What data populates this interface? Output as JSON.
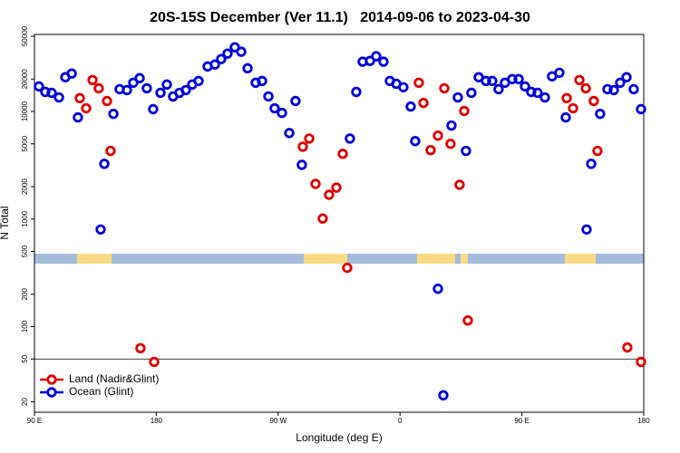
{
  "chart_data": {
    "type": "scatter",
    "title": "20S-15S December (Ver 11.1)   2014-09-06 to 2023-04-30",
    "xlabel": "Longitude (deg E)",
    "ylabel": "N Total",
    "xlim": [
      90,
      540
    ],
    "xticks": [
      {
        "value": 90,
        "label": "90 E"
      },
      {
        "value": 180,
        "label": "180"
      },
      {
        "value": 270,
        "label": "90 W"
      },
      {
        "value": 360,
        "label": "0"
      },
      {
        "value": 450,
        "label": "90 E"
      },
      {
        "value": 540,
        "label": "180"
      }
    ],
    "ylim": [
      16,
      52000
    ],
    "yscale": "log",
    "yticks": [
      20,
      50,
      100,
      200,
      500,
      1000,
      2000,
      5000,
      10000,
      20000,
      50000
    ],
    "hline": 50,
    "legend": "lower left",
    "series": [
      {
        "name": "Land (Nadir&Glint)",
        "color": "#e00000",
        "x": [
          123.5,
          128.2,
          132.9,
          137.5,
          143.6,
          146.2,
          168.3,
          178.4,
          288.2,
          292.9,
          297.6,
          302.9,
          307.6,
          313.0,
          317.7,
          321.0,
          373.9,
          377.3,
          382.6,
          388.0,
          392.7,
          397.3,
          404.0,
          407.4,
          410.1,
          483.1,
          487.8,
          492.5,
          497.2,
          503.1,
          505.8,
          527.9,
          538.0
        ],
        "values": [
          13300,
          10700,
          19600,
          16400,
          12500,
          4300,
          63,
          47,
          4700,
          5600,
          2120,
          1010,
          1680,
          1960,
          4040,
          352,
          18500,
          12000,
          4370,
          5960,
          16400,
          5000,
          2080,
          10100,
          114,
          13300,
          10700,
          19600,
          16400,
          12500,
          4300,
          64,
          47
        ]
      },
      {
        "name": "Ocean (Glint)",
        "color": "#0000dd",
        "x": [
          93.3,
          98.0,
          102.7,
          108.1,
          112.8,
          117.5,
          122.1,
          138.9,
          141.6,
          148.3,
          152.9,
          158.3,
          163.0,
          167.7,
          173.0,
          177.7,
          183.1,
          187.8,
          192.4,
          197.1,
          201.8,
          206.5,
          211.2,
          217.9,
          223.3,
          227.9,
          232.6,
          238.0,
          242.7,
          247.4,
          253.4,
          258.1,
          262.8,
          267.4,
          272.8,
          278.2,
          282.8,
          287.5,
          323.0,
          327.7,
          332.4,
          337.8,
          342.4,
          347.8,
          352.5,
          357.2,
          362.5,
          367.9,
          371.2,
          388.0,
          392.0,
          398.0,
          402.7,
          408.7,
          412.7,
          418.1,
          423.5,
          428.1,
          432.8,
          437.5,
          442.9,
          447.6,
          452.3,
          456.9,
          461.6,
          467.0,
          472.3,
          477.7,
          482.4,
          497.8,
          501.2,
          507.8,
          513.2,
          517.9,
          522.6,
          527.3,
          532.6,
          538.0
        ],
        "values": [
          17100,
          15200,
          14900,
          13500,
          20800,
          22500,
          8800,
          800,
          3260,
          9500,
          16100,
          15800,
          18500,
          20400,
          16400,
          10500,
          14900,
          17800,
          13800,
          14900,
          15800,
          17800,
          19200,
          26200,
          27300,
          30700,
          34500,
          39500,
          35900,
          25200,
          18500,
          19200,
          13800,
          10700,
          9700,
          6300,
          12500,
          3190,
          5600,
          15200,
          29000,
          29500,
          32600,
          29000,
          19200,
          18100,
          16800,
          11100,
          5300,
          225,
          23,
          7400,
          13500,
          4300,
          14900,
          20800,
          19200,
          19200,
          16100,
          18500,
          20000,
          20000,
          17100,
          15200,
          14900,
          13500,
          21200,
          22900,
          8800,
          800,
          3260,
          9500,
          16100,
          15800,
          18500,
          20800,
          16100,
          10500
        ]
      }
    ]
  }
}
